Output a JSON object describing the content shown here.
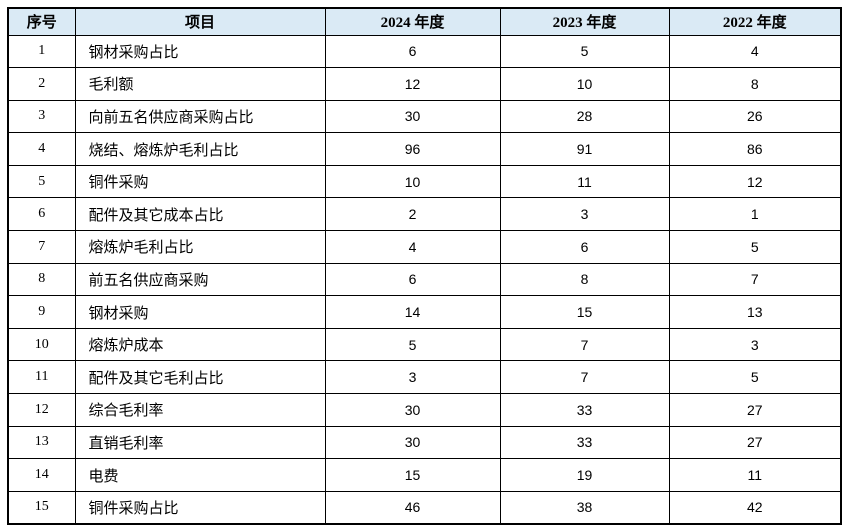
{
  "colors": {
    "header_bg": "#daeaf5",
    "border": "#000000"
  },
  "table": {
    "headers": [
      "序号",
      "项目",
      "2024 年度",
      "2023 年度",
      "2022 年度"
    ],
    "rows": [
      {
        "no": "1",
        "item": "钢材采购占比",
        "values": [
          "6",
          "5",
          "4"
        ]
      },
      {
        "no": "2",
        "item": "毛利额",
        "values": [
          "12",
          "10",
          "8"
        ]
      },
      {
        "no": "3",
        "item": "向前五名供应商采购占比",
        "values": [
          "30",
          "28",
          "26"
        ]
      },
      {
        "no": "4",
        "item": "烧结、熔炼炉毛利占比",
        "values": [
          "96",
          "91",
          "86"
        ]
      },
      {
        "no": "5",
        "item": "铜件采购",
        "values": [
          "10",
          "11",
          "12"
        ]
      },
      {
        "no": "6",
        "item": "配件及其它成本占比",
        "values": [
          "2",
          "3",
          "1"
        ]
      },
      {
        "no": "7",
        "item": "熔炼炉毛利占比",
        "values": [
          "4",
          "6",
          "5"
        ]
      },
      {
        "no": "8",
        "item": "前五名供应商采购",
        "values": [
          "6",
          "8",
          "7"
        ]
      },
      {
        "no": "9",
        "item": "钢材采购",
        "values": [
          "14",
          "15",
          "13"
        ]
      },
      {
        "no": "10",
        "item": "熔炼炉成本",
        "values": [
          "5",
          "7",
          "3"
        ]
      },
      {
        "no": "11",
        "item": "配件及其它毛利占比",
        "values": [
          "3",
          "7",
          "5"
        ]
      },
      {
        "no": "12",
        "item": "综合毛利率",
        "values": [
          "30",
          "33",
          "27"
        ]
      },
      {
        "no": "13",
        "item": "直销毛利率",
        "values": [
          "30",
          "33",
          "27"
        ]
      },
      {
        "no": "14",
        "item": "电费",
        "values": [
          "15",
          "19",
          "11"
        ]
      },
      {
        "no": "15",
        "item": "铜件采购占比",
        "values": [
          "46",
          "38",
          "42"
        ]
      }
    ]
  }
}
